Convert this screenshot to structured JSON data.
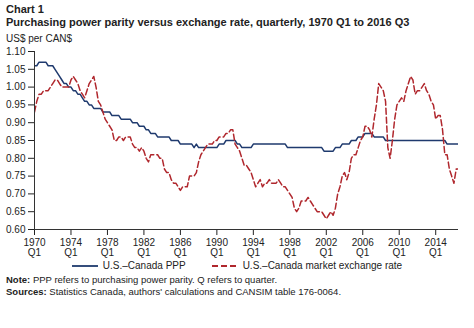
{
  "chart_data": {
    "type": "line",
    "title": "Chart 1",
    "subtitle": "Purchasing power parity versus exchange rate, quarterly, 1970 Q1 to 2016 Q3",
    "y_label": "US$ per CAN$",
    "notes": [
      "Note: PPP refers to purchasing power parity. Q refers to quarter.",
      "Sources: Statistics Canada, authors' calculations and CANSIM table 176-0064."
    ],
    "categories": [
      "1970 Q1",
      null,
      null,
      null,
      null,
      null,
      null,
      null,
      null,
      null,
      null,
      null,
      null,
      null,
      null,
      null,
      "1974 Q1",
      null,
      null,
      null,
      null,
      null,
      null,
      null,
      null,
      null,
      null,
      null,
      null,
      null,
      null,
      null,
      "1978 Q1",
      null,
      null,
      null,
      null,
      null,
      null,
      null,
      null,
      null,
      null,
      null,
      null,
      null,
      null,
      null,
      "1982 Q1",
      null,
      null,
      null,
      null,
      null,
      null,
      null,
      null,
      null,
      null,
      null,
      null,
      null,
      null,
      null,
      "1986 Q1",
      null,
      null,
      null,
      null,
      null,
      null,
      null,
      null,
      null,
      null,
      null,
      null,
      null,
      null,
      null,
      "1990 Q1",
      null,
      null,
      null,
      null,
      null,
      null,
      null,
      null,
      null,
      null,
      null,
      null,
      null,
      null,
      null,
      "1994 Q1",
      null,
      null,
      null,
      null,
      null,
      null,
      null,
      null,
      null,
      null,
      null,
      null,
      null,
      null,
      null,
      "1998 Q1",
      null,
      null,
      null,
      null,
      null,
      null,
      null,
      null,
      null,
      null,
      null,
      null,
      null,
      null,
      null,
      "2002 Q1",
      null,
      null,
      null,
      null,
      null,
      null,
      null,
      null,
      null,
      null,
      null,
      null,
      null,
      null,
      null,
      "2006 Q1",
      null,
      null,
      null,
      null,
      null,
      null,
      null,
      null,
      null,
      null,
      null,
      null,
      null,
      null,
      null,
      "2010 Q1",
      null,
      null,
      null,
      null,
      null,
      null,
      null,
      null,
      null,
      null,
      null,
      null,
      null,
      null,
      null,
      "2014 Q1",
      null,
      null,
      null,
      null,
      null,
      null,
      null,
      null,
      null,
      null
    ],
    "series": [
      {
        "name": "U.S.–Canada PPP",
        "color": "#1f3a6e",
        "line_style": "solid",
        "values": [
          1.06,
          1.06,
          1.07,
          1.07,
          1.07,
          1.07,
          1.06,
          1.06,
          1.06,
          1.05,
          1.04,
          1.03,
          1.02,
          1.01,
          1.01,
          1.0,
          1.0,
          0.99,
          0.99,
          0.98,
          0.98,
          0.97,
          0.96,
          0.96,
          0.95,
          0.95,
          0.94,
          0.94,
          0.94,
          0.94,
          0.93,
          0.93,
          0.93,
          0.93,
          0.92,
          0.92,
          0.92,
          0.92,
          0.91,
          0.91,
          0.91,
          0.91,
          0.91,
          0.9,
          0.9,
          0.9,
          0.89,
          0.89,
          0.89,
          0.88,
          0.88,
          0.87,
          0.87,
          0.87,
          0.86,
          0.86,
          0.86,
          0.86,
          0.86,
          0.86,
          0.85,
          0.85,
          0.85,
          0.85,
          0.84,
          0.84,
          0.84,
          0.84,
          0.84,
          0.84,
          0.83,
          0.84,
          0.83,
          0.83,
          0.83,
          0.83,
          0.83,
          0.83,
          0.83,
          0.83,
          0.83,
          0.84,
          0.84,
          0.84,
          0.85,
          0.85,
          0.85,
          0.85,
          0.85,
          0.84,
          0.84,
          0.83,
          0.83,
          0.83,
          0.83,
          0.83,
          0.84,
          0.84,
          0.84,
          0.84,
          0.84,
          0.84,
          0.84,
          0.84,
          0.84,
          0.84,
          0.84,
          0.84,
          0.84,
          0.84,
          0.84,
          0.83,
          0.83,
          0.83,
          0.83,
          0.83,
          0.83,
          0.83,
          0.83,
          0.83,
          0.83,
          0.83,
          0.83,
          0.83,
          0.83,
          0.83,
          0.83,
          0.82,
          0.82,
          0.82,
          0.82,
          0.82,
          0.83,
          0.83,
          0.83,
          0.84,
          0.84,
          0.84,
          0.84,
          0.85,
          0.85,
          0.85,
          0.86,
          0.86,
          0.86,
          0.87,
          0.87,
          0.87,
          0.87,
          0.86,
          0.86,
          0.86,
          0.86,
          0.86,
          0.85,
          0.85,
          0.85,
          0.85,
          0.85,
          0.85,
          0.85,
          0.85,
          0.85,
          0.85,
          0.85,
          0.85,
          0.85,
          0.85,
          0.85,
          0.85,
          0.85,
          0.85,
          0.85,
          0.85,
          0.85,
          0.85,
          0.85,
          0.85,
          0.85,
          0.85,
          0.85,
          0.84,
          0.84,
          0.84,
          0.84,
          0.84,
          0.84
        ]
      },
      {
        "name": "U.S.–Canada market exchange rate",
        "color": "#b0272d",
        "line_style": "dashed",
        "values": [
          0.93,
          0.96,
          0.98,
          0.98,
          0.99,
          0.99,
          0.99,
          1.0,
          1.01,
          1.02,
          1.02,
          1.01,
          1.0,
          1.0,
          1.0,
          1.0,
          1.02,
          1.03,
          1.02,
          1.01,
          0.99,
          0.98,
          0.97,
          0.99,
          1.01,
          1.02,
          1.03,
          1.0,
          0.96,
          0.95,
          0.93,
          0.91,
          0.9,
          0.89,
          0.88,
          0.85,
          0.85,
          0.86,
          0.86,
          0.85,
          0.86,
          0.86,
          0.86,
          0.84,
          0.83,
          0.83,
          0.82,
          0.83,
          0.82,
          0.8,
          0.79,
          0.81,
          0.81,
          0.81,
          0.81,
          0.8,
          0.8,
          0.77,
          0.76,
          0.76,
          0.74,
          0.73,
          0.73,
          0.72,
          0.71,
          0.72,
          0.72,
          0.72,
          0.75,
          0.75,
          0.75,
          0.76,
          0.79,
          0.81,
          0.82,
          0.83,
          0.84,
          0.84,
          0.84,
          0.85,
          0.85,
          0.86,
          0.86,
          0.86,
          0.87,
          0.87,
          0.88,
          0.88,
          0.84,
          0.83,
          0.82,
          0.8,
          0.78,
          0.78,
          0.77,
          0.76,
          0.74,
          0.72,
          0.73,
          0.74,
          0.72,
          0.73,
          0.73,
          0.74,
          0.73,
          0.73,
          0.73,
          0.74,
          0.73,
          0.72,
          0.72,
          0.71,
          0.7,
          0.69,
          0.66,
          0.65,
          0.66,
          0.68,
          0.68,
          0.68,
          0.69,
          0.68,
          0.67,
          0.66,
          0.65,
          0.65,
          0.65,
          0.64,
          0.63,
          0.64,
          0.65,
          0.64,
          0.66,
          0.7,
          0.72,
          0.75,
          0.76,
          0.74,
          0.76,
          0.8,
          0.81,
          0.81,
          0.83,
          0.85,
          0.86,
          0.89,
          0.89,
          0.88,
          0.86,
          0.91,
          0.95,
          1.01,
          1.0,
          0.99,
          0.96,
          0.83,
          0.8,
          0.85,
          0.91,
          0.95,
          0.96,
          0.97,
          0.96,
          0.99,
          1.01,
          1.03,
          1.02,
          0.98,
          0.99,
          0.99,
          1.0,
          1.01,
          0.99,
          0.98,
          0.96,
          0.95,
          0.91,
          0.92,
          0.92,
          0.88,
          0.81,
          0.81,
          0.77,
          0.75,
          0.73,
          0.77,
          0.77
        ]
      }
    ],
    "ylim": [
      0.6,
      1.1
    ],
    "yticks": [
      {
        "value": 0.6,
        "label": "0.60"
      },
      0.65,
      {
        "value": 0.7,
        "label": "0.70"
      },
      0.75,
      {
        "value": 0.8,
        "label": "0.80"
      },
      0.85,
      {
        "value": 0.9,
        "label": "0.90"
      },
      0.95,
      {
        "value": 1,
        "label": "1.00"
      },
      1.05,
      {
        "value": 1.1,
        "label": "1.10"
      }
    ],
    "grid": false,
    "legend": "bottom"
  }
}
